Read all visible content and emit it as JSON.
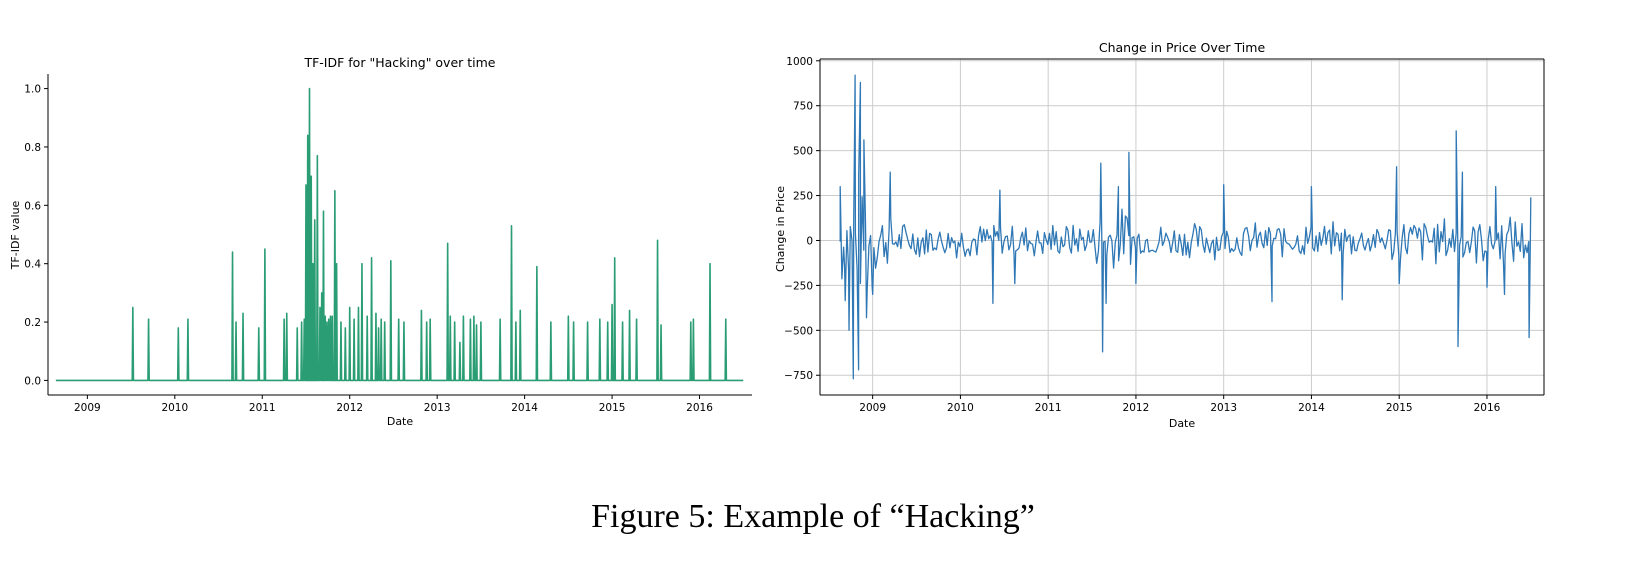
{
  "caption": "Figure 5: Example of “Hacking”",
  "colors": {
    "left_series": "#2a9d74",
    "right_series": "#2f78b5",
    "grid": "#cccccc",
    "axis": "#000000"
  },
  "chart_data": [
    {
      "type": "line",
      "title": "TF-IDF for \"Hacking\" over time",
      "xlabel": "Date",
      "ylabel": "TF-IDF value",
      "xlim": [
        2008.55,
        2016.6
      ],
      "ylim": [
        -0.05,
        1.05
      ],
      "x_ticks": [
        2009,
        2010,
        2011,
        2012,
        2013,
        2014,
        2015,
        2016
      ],
      "x_tick_labels": [
        "2009",
        "2010",
        "2011",
        "2012",
        "2013",
        "2014",
        "2015",
        "2016"
      ],
      "y_ticks": [
        0.0,
        0.2,
        0.4,
        0.6,
        0.8,
        1.0
      ],
      "y_tick_labels": [
        "0.0",
        "0.2",
        "0.4",
        "0.6",
        "0.8",
        "1.0"
      ],
      "grid": false,
      "frame": "left-bottom",
      "x_start": 2008.64,
      "x_end": 2016.5,
      "spikes": [
        [
          2009.52,
          0.25
        ],
        [
          2009.7,
          0.21
        ],
        [
          2010.04,
          0.18
        ],
        [
          2010.15,
          0.21
        ],
        [
          2010.66,
          0.44
        ],
        [
          2010.7,
          0.2
        ],
        [
          2010.78,
          0.23
        ],
        [
          2010.96,
          0.18
        ],
        [
          2011.03,
          0.45
        ],
        [
          2011.25,
          0.21
        ],
        [
          2011.28,
          0.23
        ],
        [
          2011.4,
          0.18
        ],
        [
          2011.45,
          0.2
        ],
        [
          2011.48,
          0.21
        ],
        [
          2011.5,
          0.67
        ],
        [
          2011.52,
          0.84
        ],
        [
          2011.54,
          1.0
        ],
        [
          2011.56,
          0.7
        ],
        [
          2011.58,
          0.4
        ],
        [
          2011.6,
          0.55
        ],
        [
          2011.63,
          0.77
        ],
        [
          2011.66,
          0.25
        ],
        [
          2011.68,
          0.3
        ],
        [
          2011.7,
          0.58
        ],
        [
          2011.72,
          0.22
        ],
        [
          2011.74,
          0.2
        ],
        [
          2011.76,
          0.21
        ],
        [
          2011.78,
          0.22
        ],
        [
          2011.8,
          0.22
        ],
        [
          2011.83,
          0.65
        ],
        [
          2011.85,
          0.4
        ],
        [
          2011.9,
          0.2
        ],
        [
          2011.95,
          0.18
        ],
        [
          2012.0,
          0.25
        ],
        [
          2012.05,
          0.21
        ],
        [
          2012.1,
          0.25
        ],
        [
          2012.14,
          0.4
        ],
        [
          2012.2,
          0.22
        ],
        [
          2012.25,
          0.42
        ],
        [
          2012.3,
          0.23
        ],
        [
          2012.33,
          0.18
        ],
        [
          2012.36,
          0.21
        ],
        [
          2012.4,
          0.2
        ],
        [
          2012.47,
          0.41
        ],
        [
          2012.56,
          0.21
        ],
        [
          2012.62,
          0.2
        ],
        [
          2012.82,
          0.24
        ],
        [
          2012.88,
          0.2
        ],
        [
          2012.92,
          0.21
        ],
        [
          2013.12,
          0.47
        ],
        [
          2013.15,
          0.22
        ],
        [
          2013.2,
          0.2
        ],
        [
          2013.26,
          0.13
        ],
        [
          2013.3,
          0.22
        ],
        [
          2013.38,
          0.21
        ],
        [
          2013.42,
          0.22
        ],
        [
          2013.45,
          0.19
        ],
        [
          2013.5,
          0.2
        ],
        [
          2013.72,
          0.21
        ],
        [
          2013.85,
          0.53
        ],
        [
          2013.9,
          0.2
        ],
        [
          2013.95,
          0.24
        ],
        [
          2014.14,
          0.39
        ],
        [
          2014.3,
          0.2
        ],
        [
          2014.5,
          0.22
        ],
        [
          2014.56,
          0.2
        ],
        [
          2014.72,
          0.2
        ],
        [
          2014.86,
          0.21
        ],
        [
          2014.95,
          0.2
        ],
        [
          2015.0,
          0.26
        ],
        [
          2015.03,
          0.42
        ],
        [
          2015.12,
          0.2
        ],
        [
          2015.2,
          0.24
        ],
        [
          2015.28,
          0.21
        ],
        [
          2015.52,
          0.48
        ],
        [
          2015.56,
          0.19
        ],
        [
          2015.9,
          0.2
        ],
        [
          2015.93,
          0.21
        ],
        [
          2016.12,
          0.4
        ],
        [
          2016.3,
          0.21
        ]
      ]
    },
    {
      "type": "line",
      "title": "Change in Price Over Time",
      "xlabel": "Date",
      "ylabel": "Change in Price",
      "xlim": [
        2008.4,
        2016.65
      ],
      "ylim": [
        -860,
        1010
      ],
      "x_ticks": [
        2009,
        2010,
        2011,
        2012,
        2013,
        2014,
        2015,
        2016
      ],
      "x_tick_labels": [
        "2009",
        "2010",
        "2011",
        "2012",
        "2013",
        "2014",
        "2015",
        "2016"
      ],
      "y_ticks": [
        -750,
        -500,
        -250,
        0,
        250,
        500,
        750,
        1000
      ],
      "y_tick_labels": [
        "−750",
        "−500",
        "−250",
        "0",
        "250",
        "500",
        "750",
        "1000"
      ],
      "grid": true,
      "frame": "full",
      "x_start": 2008.63,
      "x_end": 2016.5,
      "points_per_year": 52,
      "volatility_regimes": [
        {
          "from": 2008.63,
          "to": 2009.0,
          "amplitude": 420
        },
        {
          "from": 2009.0,
          "to": 2009.25,
          "amplitude": 190
        },
        {
          "from": 2009.25,
          "to": 2011.55,
          "amplitude": 110
        },
        {
          "from": 2011.55,
          "to": 2011.95,
          "amplitude": 200
        },
        {
          "from": 2011.95,
          "to": 2014.9,
          "amplitude": 110
        },
        {
          "from": 2014.9,
          "to": 2016.5,
          "amplitude": 150
        }
      ],
      "extremes": [
        [
          2008.63,
          300
        ],
        [
          2008.68,
          -140
        ],
        [
          2008.73,
          -500
        ],
        [
          2008.78,
          -770
        ],
        [
          2008.8,
          920
        ],
        [
          2008.84,
          -720
        ],
        [
          2008.86,
          880
        ],
        [
          2008.9,
          560
        ],
        [
          2008.93,
          -430
        ],
        [
          2009.0,
          -300
        ],
        [
          2009.2,
          380
        ],
        [
          2010.37,
          -350
        ],
        [
          2010.45,
          280
        ],
        [
          2010.62,
          -240
        ],
        [
          2011.6,
          430
        ],
        [
          2011.62,
          -620
        ],
        [
          2011.66,
          -350
        ],
        [
          2011.8,
          300
        ],
        [
          2011.92,
          490
        ],
        [
          2012.0,
          -240
        ],
        [
          2013.0,
          310
        ],
        [
          2013.55,
          -340
        ],
        [
          2014.0,
          300
        ],
        [
          2014.35,
          -330
        ],
        [
          2014.97,
          410
        ],
        [
          2015.0,
          -240
        ],
        [
          2015.65,
          610
        ],
        [
          2015.67,
          -590
        ],
        [
          2015.72,
          380
        ],
        [
          2016.0,
          -260
        ],
        [
          2016.1,
          300
        ],
        [
          2016.2,
          -300
        ],
        [
          2016.48,
          -540
        ],
        [
          2016.5,
          240
        ]
      ]
    }
  ]
}
